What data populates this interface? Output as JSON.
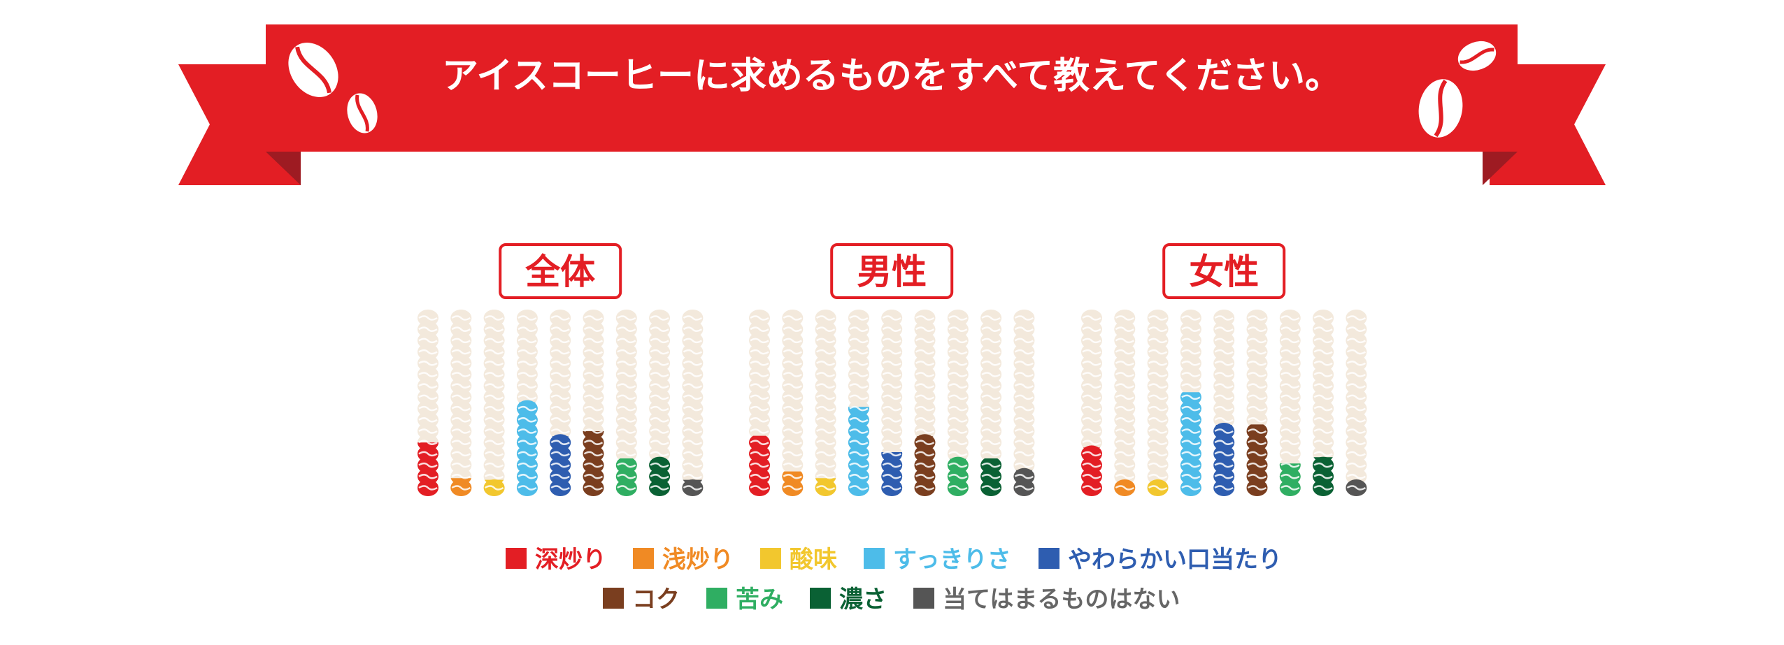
{
  "chart_data": {
    "type": "bar",
    "title": "アイスコーヒーに求めるものをすべて教えてください。",
    "units_per_bean": "bean icons stacked per category",
    "ylim": [
      0,
      16
    ],
    "categories": [
      "深炒り",
      "浅炒り",
      "酸味",
      "すっきりさ",
      "やわらかい口当たり",
      "コク",
      "苦み",
      "濃さ",
      "当てはまるものはない"
    ],
    "colors": [
      "#e31e24",
      "#f08a24",
      "#f2c72e",
      "#4dbce9",
      "#2e5db0",
      "#7a3e1f",
      "#2fae62",
      "#0a6134",
      "#555555"
    ],
    "label_colors": [
      "#e31e24",
      "#f08a24",
      "#f2c72e",
      "#4dbce9",
      "#2e5db0",
      "#7a3e1f",
      "#2fae62",
      "#0a6134",
      "#666666"
    ],
    "background_bean_color": "#f3e9dc",
    "panels": [
      {
        "name": "全体",
        "values": [
          4.5,
          1.4,
          1.3,
          8.2,
          5.2,
          5.5,
          2.9,
          3.1,
          1.3
        ]
      },
      {
        "name": "男性",
        "values": [
          4.9,
          1.8,
          1.4,
          7.6,
          3.6,
          5.2,
          3.2,
          2.9,
          2.2
        ]
      },
      {
        "name": "女性",
        "values": [
          4.2,
          1.0,
          1.1,
          8.8,
          6.2,
          5.9,
          2.6,
          3.3,
          1.0
        ]
      }
    ],
    "legend_rows": [
      [
        0,
        1,
        2,
        3,
        4
      ],
      [
        5,
        6,
        7,
        8
      ]
    ]
  },
  "banner": {
    "color": "#e31e24",
    "fold_color": "#9e1b22"
  }
}
